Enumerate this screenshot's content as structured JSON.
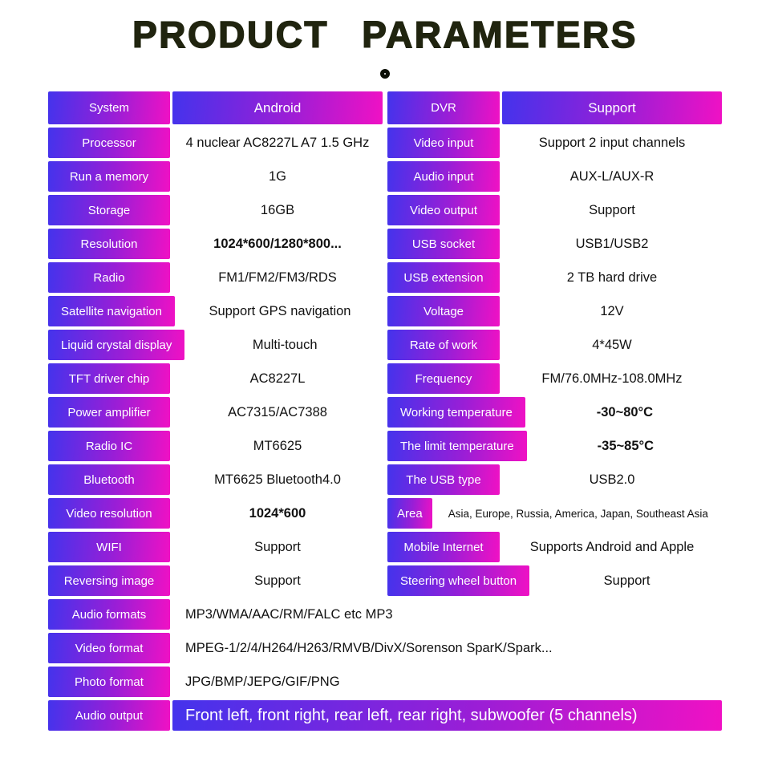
{
  "title": "PRODUCT PARAMETERS",
  "colors": {
    "gradient_start": "#4433ec",
    "gradient_mid": "#9a1ed6",
    "gradient_end": "#f011c4",
    "title_text": "#20240f",
    "value_text": "#111111",
    "page_bg": "#ffffff"
  },
  "icons": {
    "ring": "decorative-ring"
  },
  "table": {
    "left": [
      {
        "label": "System",
        "value": "Android",
        "header": true
      },
      {
        "label": "Processor",
        "value": "4 nuclear  AC8227L A7 1.5 GHz"
      },
      {
        "label": "Run a memory",
        "value": "1G"
      },
      {
        "label": "Storage",
        "value": "16GB"
      },
      {
        "label": "Resolution",
        "value": "1024*600/1280*800...",
        "bold_value": true
      },
      {
        "label": "Radio",
        "value": "FM1/FM2/FM3/RDS"
      },
      {
        "label": "Satellite navigation",
        "value": "Support GPS navigation"
      },
      {
        "label": "Liquid crystal display",
        "value": "Multi-touch"
      },
      {
        "label": "TFT driver chip",
        "value": "AC8227L"
      },
      {
        "label": "Power amplifier",
        "value": "AC7315/AC7388"
      },
      {
        "label": "Radio IC",
        "value": "MT6625"
      },
      {
        "label": "Bluetooth",
        "value": "MT6625 Bluetooth4.0"
      },
      {
        "label": "Video resolution",
        "value": "1024*600",
        "bold_value": true
      },
      {
        "label": "WIFI",
        "value": "Support"
      },
      {
        "label": "Reversing image",
        "value": "Support"
      }
    ],
    "right": [
      {
        "label": "DVR",
        "value": "Support",
        "header": true
      },
      {
        "label": "Video input",
        "value": "Support 2 input channels"
      },
      {
        "label": "Audio input",
        "value": "AUX-L/AUX-R"
      },
      {
        "label": "Video output",
        "value": "Support"
      },
      {
        "label": "USB socket",
        "value": "USB1/USB2"
      },
      {
        "label": "USB extension",
        "value": "2 TB hard drive"
      },
      {
        "label": "Voltage",
        "value": "12V"
      },
      {
        "label": "Rate of work",
        "value": "4*45W"
      },
      {
        "label": "Frequency",
        "value": "FM/76.0MHz-108.0MHz"
      },
      {
        "label": "Working temperature",
        "value": "-30~80°C",
        "bold_value": true
      },
      {
        "label": "The limit temperature",
        "value": "-35~85°C",
        "bold_value": true
      },
      {
        "label": "The USB type",
        "value": "USB2.0"
      },
      {
        "label": "Area",
        "value": "Asia, Europe, Russia, America, Japan, Southeast Asia",
        "narrow_pill": true,
        "small_value": true
      },
      {
        "label": "Mobile Internet",
        "value": "Supports Android and Apple"
      },
      {
        "label": "Steering wheel button",
        "value": "Support"
      }
    ],
    "full": [
      {
        "label": "Audio formats",
        "value": "MP3/WMA/AAC/RM/FALC etc MP3"
      },
      {
        "label": "Video format",
        "value": "MPEG-1/2/4/H264/H263/RMVB/DivX/Sorenson SparK/Spark..."
      },
      {
        "label": "Photo format",
        "value": "JPG/BMP/JEPG/GIF/PNG"
      },
      {
        "label": "Audio output",
        "value": "Front left, front right, rear left, rear right, subwoofer (5 channels)",
        "gradient_value": true
      }
    ]
  }
}
